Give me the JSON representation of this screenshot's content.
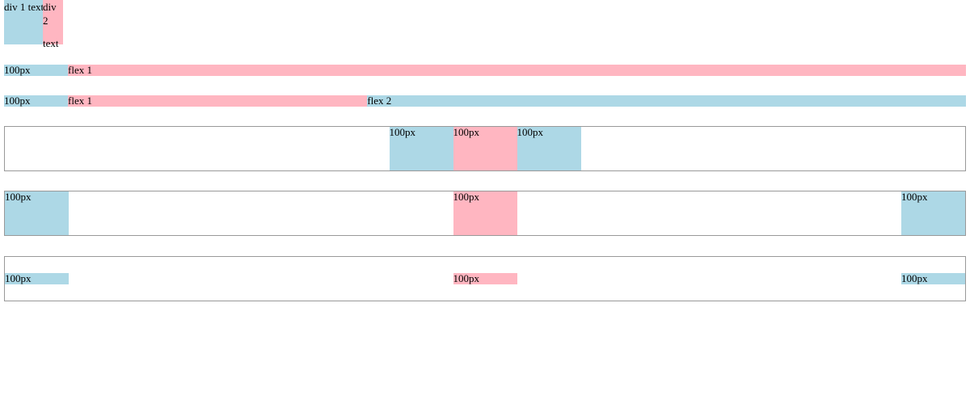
{
  "row1": {
    "div1_label": "div 1 text",
    "div2_line1": "div 2",
    "div2_line2": "text"
  },
  "row2": {
    "fixed_label": "100px",
    "flex1_label": "flex 1"
  },
  "row3": {
    "fixed_label": "100px",
    "flex1_label": "flex 1",
    "flex2_label": "flex 2"
  },
  "row4": {
    "items": [
      "100px",
      "100px",
      "100px"
    ]
  },
  "row5": {
    "items": [
      "100px",
      "100px",
      "100px"
    ]
  },
  "row6": {
    "items": [
      "100px",
      "100px",
      "100px"
    ]
  },
  "colors": {
    "blue": "#add8e6",
    "pink": "#ffb6c1",
    "border": "#999999"
  }
}
